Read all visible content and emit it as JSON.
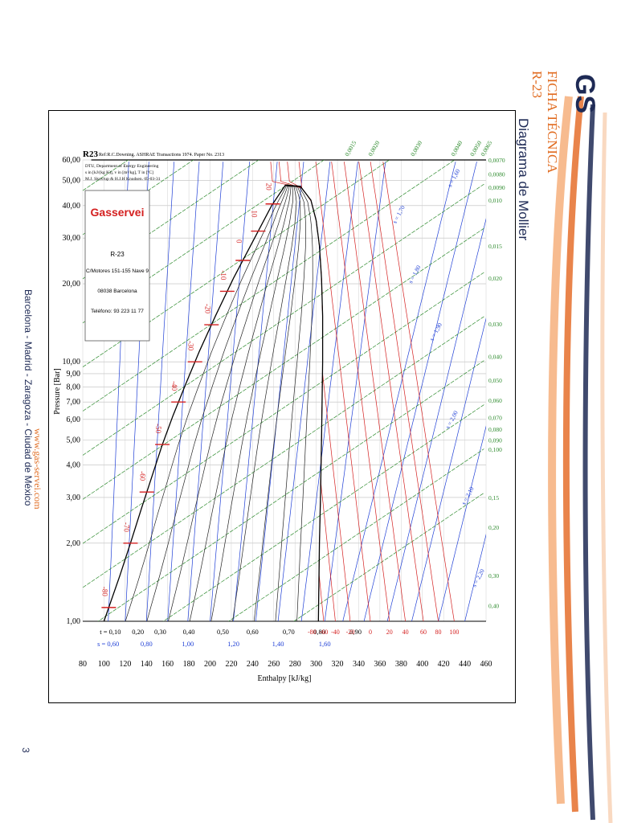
{
  "header": {
    "logo_text": "GS",
    "doc_type": "FICHA TÉCNICA",
    "refrigerant": "R-23",
    "section_title": "Diagrama de Mollier"
  },
  "footer": {
    "website": "www.gas-servei.com",
    "cities": "Barcelona - Madrid - Zaragoza - Ciudad de México",
    "page_number": "3"
  },
  "info_box": {
    "brand": "Gasservei",
    "product": "R-23",
    "address": "C/Motores 151-155 Nave 9",
    "city": "08038 Barcelona",
    "phone": "Teléfono: 93 223 11 77"
  },
  "chart_data": {
    "type": "line",
    "title": "R23",
    "reference": "Ref:R.C.Downing. ASHRAE Transactions 1974. Paper No. 2313",
    "notes": [
      "DTU, Department of Energy Engineering",
      "s in [kJ/(kg K)], v in [m³/kg], T in [ºC]",
      "M.J. Skovrup & H.J.H Knudsen. 05-03-31"
    ],
    "xlabel": "Enthalpy [kJ/kg]",
    "ylabel": "Pressure [Bar]",
    "xlim": [
      80,
      460
    ],
    "ylim": [
      1,
      60
    ],
    "yscale": "log",
    "grid": true,
    "x_ticks": [
      "80",
      "100",
      "120",
      "140",
      "160",
      "180",
      "200",
      "220",
      "240",
      "260",
      "280",
      "300",
      "320",
      "340",
      "360",
      "380",
      "400",
      "420",
      "440",
      "460"
    ],
    "y_ticks": [
      {
        "value": 1,
        "label": "1,00"
      },
      {
        "value": 2,
        "label": "2,00"
      },
      {
        "value": 3,
        "label": "3,00"
      },
      {
        "value": 4,
        "label": "4,00"
      },
      {
        "value": 5,
        "label": "5,00"
      },
      {
        "value": 6,
        "label": "6,00"
      },
      {
        "value": 7,
        "label": "7,00"
      },
      {
        "value": 8,
        "label": "8,00"
      },
      {
        "value": 9,
        "label": "9,00"
      },
      {
        "value": 10,
        "label": "10,00"
      },
      {
        "value": 20,
        "label": "20,00"
      },
      {
        "value": 30,
        "label": "30,00"
      },
      {
        "value": 40,
        "label": "40,00"
      },
      {
        "value": 50,
        "label": "50,00"
      },
      {
        "value": 60,
        "label": "60,00"
      }
    ],
    "quality_labels": [
      {
        "h": 106,
        "label": "t = 0,10"
      },
      {
        "h": 132,
        "label": "0,20"
      },
      {
        "h": 153,
        "label": "0,30"
      },
      {
        "h": 180,
        "label": "0,40"
      },
      {
        "h": 212,
        "label": "0,50"
      },
      {
        "h": 240,
        "label": "0,60"
      },
      {
        "h": 274,
        "label": "0,70"
      },
      {
        "h": 303,
        "label": "0,80"
      },
      {
        "h": 337,
        "label": "0,90"
      }
    ],
    "entropy_labels": [
      {
        "h": 104,
        "label": "s = 0,60"
      },
      {
        "h": 140,
        "label": "0,80"
      },
      {
        "h": 179,
        "label": "1,00"
      },
      {
        "h": 222,
        "label": "1,20"
      },
      {
        "h": 264,
        "label": "1,40"
      },
      {
        "h": 308,
        "label": "1,60"
      }
    ],
    "superheat_temps": [
      "-80",
      "-60",
      "-40",
      "-20",
      "0",
      "20",
      "40",
      "60",
      "80",
      "100"
    ],
    "superheat_temp_h": [
      296,
      307,
      318,
      332,
      351,
      369,
      384,
      401,
      415,
      430
    ],
    "volume_labels": [
      {
        "p": 60,
        "label": "0,0070"
      },
      {
        "p": 53,
        "label": "0,0080"
      },
      {
        "p": 47,
        "label": "0,0090"
      },
      {
        "p": 42,
        "label": "0,010"
      },
      {
        "p": 28,
        "label": "0,015"
      },
      {
        "p": 21,
        "label": "0,020"
      },
      {
        "p": 14,
        "label": "0,030"
      },
      {
        "p": 10.5,
        "label": "0,040"
      },
      {
        "p": 8.5,
        "label": "0,050"
      },
      {
        "p": 7.1,
        "label": "0,060"
      },
      {
        "p": 6.1,
        "label": "0,070"
      },
      {
        "p": 5.5,
        "label": "0,080"
      },
      {
        "p": 5.0,
        "label": "0,090"
      },
      {
        "p": 4.6,
        "label": "0,100"
      },
      {
        "p": 3.0,
        "label": "0,15"
      },
      {
        "p": 2.3,
        "label": "0,20"
      },
      {
        "p": 1.5,
        "label": "0,30"
      },
      {
        "p": 1.15,
        "label": "0,40"
      }
    ],
    "top_volume_labels": [
      {
        "h": 330,
        "label": "0,0015"
      },
      {
        "h": 352,
        "label": "0,0020"
      },
      {
        "h": 392,
        "label": "0,0030"
      },
      {
        "h": 430,
        "label": "0,0040"
      },
      {
        "h": 448,
        "label": "0,0050"
      },
      {
        "h": 458,
        "label": "0,0065"
      }
    ],
    "entropy_line_labels": [
      {
        "h": 427,
        "p": 47,
        "label": "s = 1,60"
      },
      {
        "h": 375,
        "p": 34,
        "label": "s = 1,70"
      },
      {
        "h": 390,
        "p": 20,
        "label": "s = 1,80"
      },
      {
        "h": 410,
        "p": 12,
        "label": "s = 1,90"
      },
      {
        "h": 425,
        "p": 5.5,
        "label": "s = 2,00"
      },
      {
        "h": 440,
        "p": 2.8,
        "label": "s = 2,10"
      },
      {
        "h": 450,
        "p": 1.35,
        "label": "s = 2,20"
      }
    ],
    "sat_temps": [
      {
        "p": 1.13,
        "label": "-80"
      },
      {
        "p": 2.0,
        "label": "-70"
      },
      {
        "p": 3.15,
        "label": "-60"
      },
      {
        "p": 4.8,
        "label": "-50"
      },
      {
        "p": 7.0,
        "label": "-40"
      },
      {
        "p": 10.0,
        "label": "-30"
      },
      {
        "p": 13.9,
        "label": "-20"
      },
      {
        "p": 18.7,
        "label": "-10"
      },
      {
        "p": 24.6,
        "label": "0"
      },
      {
        "p": 31.9,
        "label": "10"
      },
      {
        "p": 40.6,
        "label": "20"
      }
    ],
    "saturated_liquid": {
      "h": [
        100.0,
        115.0,
        125.0,
        135.0,
        145.0,
        155.0,
        165.0,
        177.0,
        190.0,
        205.0,
        222.0,
        240.0,
        258.0,
        271.0
      ],
      "p": [
        1.0,
        1.5,
        2.0,
        2.7,
        3.6,
        4.8,
        6.2,
        8.2,
        11.0,
        15.0,
        21.0,
        29.0,
        40.0,
        48.0
      ]
    },
    "saturated_vapor": {
      "h": [
        271.0,
        285.0,
        295.0,
        300.0,
        303.0,
        305.0,
        306.0,
        306.0,
        305.5,
        305.0,
        304.0,
        303.0,
        302.0
      ],
      "p": [
        48.0,
        47.5,
        42.0,
        35.0,
        28.0,
        21.0,
        15.0,
        10.0,
        7.0,
        5.0,
        3.0,
        2.0,
        1.0
      ]
    }
  }
}
